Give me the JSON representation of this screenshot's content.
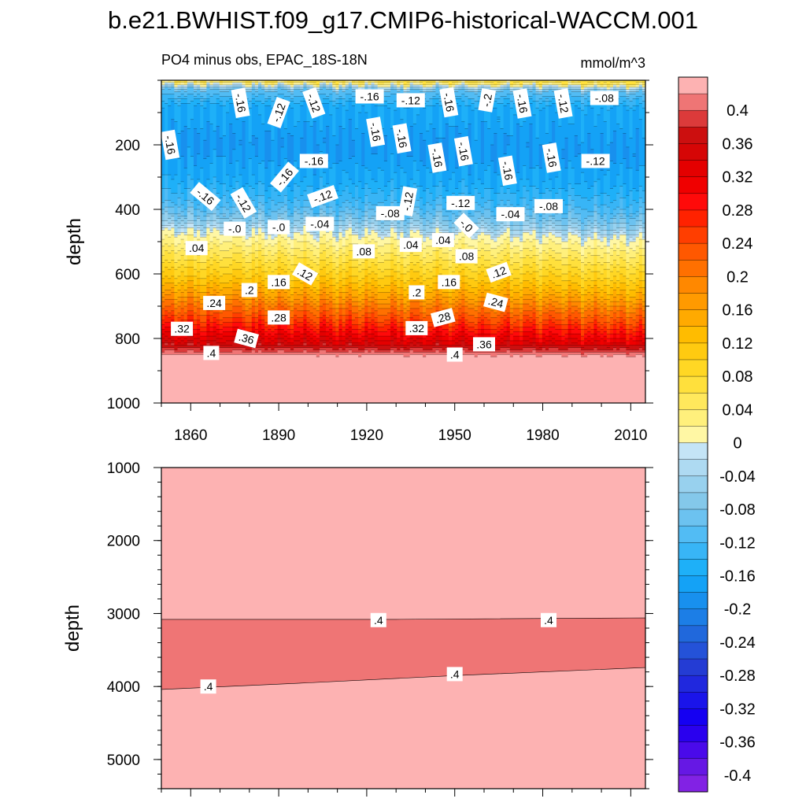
{
  "chart_data": {
    "type": "contour",
    "title": "b.e21.BWHIST.f09_g17.CMIP6-historical-WACCM.001",
    "panels": [
      {
        "name": "upper",
        "subtitle_left": "PO4 minus obs, EPAC_18S-18N",
        "subtitle_right": "mmol/m^3",
        "ylabel": "depth",
        "xlim": [
          1850,
          2015
        ],
        "ylim": [
          0,
          1000
        ],
        "xticks": [
          "1860",
          "1890",
          "1920",
          "1950",
          "1980",
          "2010"
        ],
        "yticks": [
          "200",
          "400",
          "600",
          "800",
          "1000"
        ],
        "profile": [
          {
            "depth": 0,
            "value": 0.06
          },
          {
            "depth": 12,
            "value": 0.0
          },
          {
            "depth": 30,
            "value": -0.1
          },
          {
            "depth": 80,
            "value": -0.16
          },
          {
            "depth": 200,
            "value": -0.18
          },
          {
            "depth": 300,
            "value": -0.16
          },
          {
            "depth": 380,
            "value": -0.12
          },
          {
            "depth": 420,
            "value": -0.08
          },
          {
            "depth": 450,
            "value": -0.04
          },
          {
            "depth": 470,
            "value": 0.0
          },
          {
            "depth": 520,
            "value": 0.04
          },
          {
            "depth": 570,
            "value": 0.08
          },
          {
            "depth": 620,
            "value": 0.12
          },
          {
            "depth": 660,
            "value": 0.16
          },
          {
            "depth": 690,
            "value": 0.2
          },
          {
            "depth": 730,
            "value": 0.24
          },
          {
            "depth": 760,
            "value": 0.28
          },
          {
            "depth": 790,
            "value": 0.32
          },
          {
            "depth": 820,
            "value": 0.36
          },
          {
            "depth": 850,
            "value": 0.42
          },
          {
            "depth": 1000,
            "value": 0.44
          }
        ],
        "contour_labels": [
          {
            "text": "-.16",
            "year": 1877,
            "depth": 70,
            "angle": 80
          },
          {
            "text": "-.12",
            "year": 1890,
            "depth": 100,
            "angle": -70
          },
          {
            "text": "-.12",
            "year": 1902,
            "depth": 70,
            "angle": 70
          },
          {
            "text": "-.16",
            "year": 1921,
            "depth": 50,
            "angle": 0
          },
          {
            "text": "-.12",
            "year": 1935,
            "depth": 62,
            "angle": 0
          },
          {
            "text": "-.16",
            "year": 1948,
            "depth": 68,
            "angle": 80
          },
          {
            "text": "-.2",
            "year": 1961,
            "depth": 62,
            "angle": -80
          },
          {
            "text": "-.16",
            "year": 1973,
            "depth": 72,
            "angle": 80
          },
          {
            "text": "-.12",
            "year": 1987,
            "depth": 72,
            "angle": 80
          },
          {
            "text": "-.08",
            "year": 2001,
            "depth": 55,
            "angle": 0
          },
          {
            "text": "-.16",
            "year": 1853,
            "depth": 200,
            "angle": 80
          },
          {
            "text": "-.16",
            "year": 1923,
            "depth": 160,
            "angle": 80
          },
          {
            "text": "-.16",
            "year": 1932,
            "depth": 180,
            "angle": 80
          },
          {
            "text": "-.16",
            "year": 1944,
            "depth": 240,
            "angle": 80
          },
          {
            "text": "-.16",
            "year": 1953,
            "depth": 220,
            "angle": 80
          },
          {
            "text": "-.16",
            "year": 1968,
            "depth": 280,
            "angle": 80
          },
          {
            "text": "-.16",
            "year": 1983,
            "depth": 240,
            "angle": 80
          },
          {
            "text": "-.12",
            "year": 1998,
            "depth": 250,
            "angle": 0
          },
          {
            "text": "-.16",
            "year": 1902,
            "depth": 250,
            "angle": 0
          },
          {
            "text": "-.16",
            "year": 1892,
            "depth": 300,
            "angle": -50
          },
          {
            "text": "-.16",
            "year": 1865,
            "depth": 360,
            "angle": 40
          },
          {
            "text": "-.12",
            "year": 1878,
            "depth": 380,
            "angle": 60
          },
          {
            "text": "-.12",
            "year": 1905,
            "depth": 360,
            "angle": -20
          },
          {
            "text": "-.12",
            "year": 1934,
            "depth": 375,
            "angle": -80
          },
          {
            "text": "-.12",
            "year": 1952,
            "depth": 380,
            "angle": 0
          },
          {
            "text": "-.08",
            "year": 1928,
            "depth": 412,
            "angle": 0
          },
          {
            "text": "-.08",
            "year": 1982,
            "depth": 390,
            "angle": 0
          },
          {
            "text": "-.04",
            "year": 1969,
            "depth": 415,
            "angle": 0
          },
          {
            "text": "-.0",
            "year": 1875,
            "depth": 460,
            "angle": 0
          },
          {
            "text": "-.0",
            "year": 1890,
            "depth": 455,
            "angle": 0
          },
          {
            "text": "-.04",
            "year": 1904,
            "depth": 445,
            "angle": 0
          },
          {
            "text": "-.0",
            "year": 1954,
            "depth": 450,
            "angle": 45
          },
          {
            "text": ".04",
            "year": 1862,
            "depth": 520,
            "angle": 0
          },
          {
            "text": ".08",
            "year": 1919,
            "depth": 530,
            "angle": 0
          },
          {
            "text": ".04",
            "year": 1935,
            "depth": 510,
            "angle": 0
          },
          {
            "text": ".04",
            "year": 1946,
            "depth": 495,
            "angle": 0
          },
          {
            "text": ".08",
            "year": 1954,
            "depth": 545,
            "angle": 0
          },
          {
            "text": ".12",
            "year": 1899,
            "depth": 600,
            "angle": 30
          },
          {
            "text": ".12",
            "year": 1965,
            "depth": 595,
            "angle": -20
          },
          {
            "text": ".16",
            "year": 1890,
            "depth": 625,
            "angle": 0
          },
          {
            "text": ".16",
            "year": 1948,
            "depth": 625,
            "angle": 0
          },
          {
            "text": ".2",
            "year": 1880,
            "depth": 650,
            "angle": 0
          },
          {
            "text": ".2",
            "year": 1937,
            "depth": 657,
            "angle": 0
          },
          {
            "text": ".24",
            "year": 1868,
            "depth": 690,
            "angle": 0
          },
          {
            "text": ".24",
            "year": 1964,
            "depth": 688,
            "angle": 15
          },
          {
            "text": ".28",
            "year": 1890,
            "depth": 735,
            "angle": 0
          },
          {
            "text": ".28",
            "year": 1946,
            "depth": 735,
            "angle": -15
          },
          {
            "text": ".32",
            "year": 1857,
            "depth": 770,
            "angle": 0
          },
          {
            "text": ".32",
            "year": 1937,
            "depth": 768,
            "angle": 0
          },
          {
            "text": ".36",
            "year": 1879,
            "depth": 800,
            "angle": 15
          },
          {
            "text": ".36",
            "year": 1960,
            "depth": 818,
            "angle": 0
          },
          {
            "text": ".4",
            "year": 1867,
            "depth": 845,
            "angle": 0
          },
          {
            "text": ".4",
            "year": 1950,
            "depth": 850,
            "angle": 0
          }
        ]
      },
      {
        "name": "lower",
        "ylabel": "depth",
        "xlim": [
          1850,
          2015
        ],
        "ylim": [
          1000,
          5400
        ],
        "yticks": [
          "1000",
          "2000",
          "3000",
          "4000",
          "5000"
        ],
        "regions": [
          {
            "range": "above 0.44",
            "boundary": "upper",
            "color": "#FDB2B2"
          },
          {
            "range": "0.40 to 0.44",
            "color": "#EF7575"
          },
          {
            "range": "above 0.44",
            "boundary": "lower",
            "color": "#FDB2B2"
          }
        ],
        "upper_contour": [
          {
            "year": 1850,
            "depth": 3080
          },
          {
            "year": 1930,
            "depth": 3080
          },
          {
            "year": 2015,
            "depth": 3060
          }
        ],
        "lower_contour": [
          {
            "year": 1850,
            "depth": 4040
          },
          {
            "year": 1900,
            "depth": 3950
          },
          {
            "year": 1950,
            "depth": 3850
          },
          {
            "year": 2015,
            "depth": 3740
          }
        ],
        "contour_labels": [
          {
            "text": ".4",
            "year": 1924,
            "depth": 3090,
            "angle": 0
          },
          {
            "text": ".4",
            "year": 1982,
            "depth": 3090,
            "angle": 0
          },
          {
            "text": ".4",
            "year": 1866,
            "depth": 4000,
            "angle": 0
          },
          {
            "text": ".4",
            "year": 1950,
            "depth": 3830,
            "angle": 0
          }
        ]
      }
    ],
    "colorbar": {
      "units": "mmol/m^3",
      "levels_top_to_bottom": [
        0.44,
        0.42,
        0.4,
        0.38,
        0.36,
        0.34,
        0.32,
        0.3,
        0.28,
        0.26,
        0.24,
        0.22,
        0.2,
        0.18,
        0.16,
        0.14,
        0.12,
        0.1,
        0.08,
        0.06,
        0.04,
        0.02,
        0.0,
        -0.02,
        -0.04,
        -0.06,
        -0.08,
        -0.1,
        -0.12,
        -0.14,
        -0.16,
        -0.18,
        -0.2,
        -0.22,
        -0.24,
        -0.26,
        -0.28,
        -0.3,
        -0.32,
        -0.34,
        -0.36,
        -0.38,
        -0.4,
        -0.42
      ],
      "labels": [
        "0.4",
        "0.36",
        "0.32",
        "0.28",
        "0.24",
        "0.2",
        "0.16",
        "0.12",
        "0.08",
        "0.04",
        "0",
        "-0.04",
        "-0.08",
        "-0.12",
        "-0.16",
        "-0.2",
        "-0.24",
        "-0.28",
        "-0.32",
        "-0.36",
        "-0.4"
      ],
      "colors": [
        "#FDB2B2",
        "#EF7575",
        "#DC3A3A",
        "#CC0F0F",
        "#D60606",
        "#E40000",
        "#F00000",
        "#FF0A0A",
        "#FF2200",
        "#FF3E00",
        "#FF5800",
        "#FF7000",
        "#FF8800",
        "#FF9A00",
        "#FFAA00",
        "#FFBC00",
        "#FFCA10",
        "#FFD724",
        "#FFE03C",
        "#FFE85C",
        "#FFF07C",
        "#FFF7A4",
        "#C4E4F6",
        "#AEDAF2",
        "#98D1EE",
        "#84C8EA",
        "#6CC2F0",
        "#52BCF4",
        "#38B5F6",
        "#1EB0F8",
        "#14A2F6",
        "#1890EE",
        "#1C7EE6",
        "#2068DC",
        "#2452D8",
        "#243CD4",
        "#2028DE",
        "#1A14EA",
        "#1500F2",
        "#2A00EE",
        "#4A0AEA",
        "#6618E4",
        "#8222E4"
      ]
    }
  }
}
